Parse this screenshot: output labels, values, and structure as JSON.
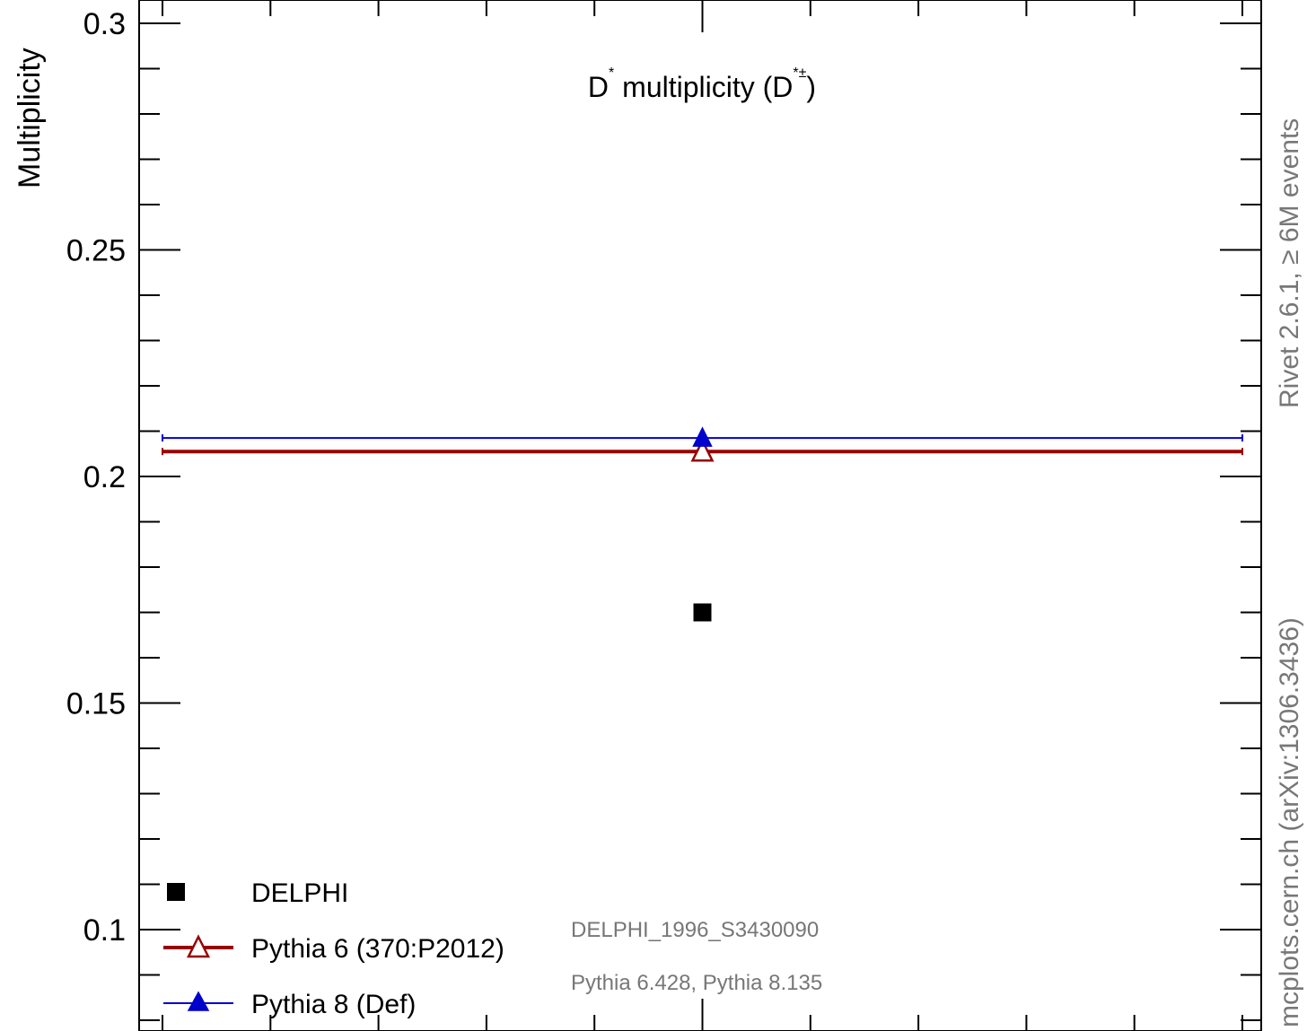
{
  "chart_data": {
    "type": "scatter",
    "title": "D* multiplicity (D*±)",
    "ylabel": "Multiplicity",
    "ylim": [
      0.08,
      0.3
    ],
    "xlim": [
      0,
      1
    ],
    "yticks_major": [
      0.1,
      0.15,
      0.2,
      0.25,
      0.3
    ],
    "yticks_labels": [
      "0.1",
      "0.15",
      "0.2",
      "0.25",
      "0.3"
    ],
    "grid": false,
    "legend_position": "bottom-left",
    "series": [
      {
        "name": "DELPHI",
        "x": [
          0.5
        ],
        "y": [
          0.17
        ],
        "marker": "square",
        "color": "#000000",
        "line": false
      },
      {
        "name": "Pythia 6 (370:P2012)",
        "x": [
          0.5
        ],
        "y": [
          0.2055
        ],
        "xerr": [
          0.5
        ],
        "marker": "open-triangle",
        "color": "#990000",
        "line": true,
        "line_width": "thick"
      },
      {
        "name": "Pythia 8 (Def)",
        "x": [
          0.5
        ],
        "y": [
          0.2085
        ],
        "xerr": [
          0.5
        ],
        "marker": "filled-triangle",
        "color": "#0000cc",
        "line": true,
        "line_width": "thin"
      }
    ],
    "annotations": {
      "analysis": "DELPHI_1996_S3430090",
      "generators": "Pythia 6.428, Pythia 8.135",
      "side_top": "Rivet 2.6.1, ≥ 6M events",
      "side_bottom": "mcplots.cern.ch (arXiv:1306.3436)"
    }
  },
  "colors": {
    "axis": "#000000",
    "annotation_gray": "#777777",
    "pythia6": "#990000",
    "pythia8": "#0000cc"
  }
}
